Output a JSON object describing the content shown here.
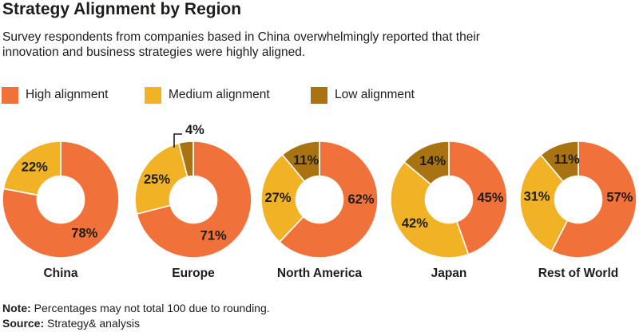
{
  "header": {
    "title": "Strategy Alignment by Region",
    "subtitle_line1": "Survey respondents from companies based in China overwhelmingly reported that their",
    "subtitle_line2": "innovation and business strategies were highly aligned."
  },
  "legend": {
    "items": [
      {
        "label": "High alignment",
        "color": "#F0713A"
      },
      {
        "label": "Medium alignment",
        "color": "#F1B226"
      },
      {
        "label": "Low alignment",
        "color": "#A87310"
      }
    ]
  },
  "footer": {
    "note_label": "Note:",
    "note_text": " Percentages may not total 100 due to rounding.",
    "source_label": "Source:",
    "source_text": " Strategy& analysis"
  },
  "colors": {
    "high": "#F0713A",
    "medium": "#F1B226",
    "low": "#A87310",
    "text": "#1d1d1b",
    "background": "#ffffff"
  },
  "chart_data": [
    {
      "type": "pie",
      "variant": "donut",
      "title": "China",
      "categories": [
        "High alignment",
        "Medium alignment"
      ],
      "values": [
        78,
        22
      ],
      "labels": [
        "78%",
        "22%"
      ],
      "colors": [
        "#F0713A",
        "#F1B226"
      ],
      "start_angle_deg": 0,
      "direction": "clockwise",
      "label_angles": [
        145,
        321
      ]
    },
    {
      "type": "pie",
      "variant": "donut",
      "title": "Europe",
      "categories": [
        "High alignment",
        "Medium alignment",
        "Low alignment"
      ],
      "values": [
        71,
        25,
        4
      ],
      "labels": [
        "71%",
        "25%",
        "4%"
      ],
      "colors": [
        "#F0713A",
        "#F1B226",
        "#A87310"
      ],
      "start_angle_deg": 0,
      "direction": "clockwise",
      "label_angles": [
        151,
        299,
        null
      ],
      "callout_slice": 2
    },
    {
      "type": "pie",
      "variant": "donut",
      "title": "North America",
      "categories": [
        "High alignment",
        "Medium alignment",
        "Low alignment"
      ],
      "values": [
        62,
        27,
        11
      ],
      "labels": [
        "62%",
        "27%",
        "11%"
      ],
      "colors": [
        "#F0713A",
        "#F1B226",
        "#A87310"
      ],
      "start_angle_deg": 0,
      "direction": "clockwise",
      "label_angles": [
        90,
        272,
        341
      ]
    },
    {
      "type": "pie",
      "variant": "donut",
      "title": "Japan",
      "categories": [
        "High alignment",
        "Medium alignment",
        "Low alignment"
      ],
      "values": [
        45,
        42,
        14
      ],
      "labels": [
        "45%",
        "42%",
        "14%"
      ],
      "colors": [
        "#F0713A",
        "#F1B226",
        "#A87310"
      ],
      "start_angle_deg": 0,
      "direction": "clockwise",
      "label_angles": [
        88,
        235,
        337
      ]
    },
    {
      "type": "pie",
      "variant": "donut",
      "title": "Rest of World",
      "categories": [
        "High alignment",
        "Medium alignment",
        "Low alignment"
      ],
      "values": [
        57,
        31,
        11
      ],
      "labels": [
        "57%",
        "31%",
        "11%"
      ],
      "colors": [
        "#F0713A",
        "#F1B226",
        "#A87310"
      ],
      "start_angle_deg": 0,
      "direction": "clockwise",
      "label_angles": [
        87,
        274,
        344
      ]
    }
  ]
}
